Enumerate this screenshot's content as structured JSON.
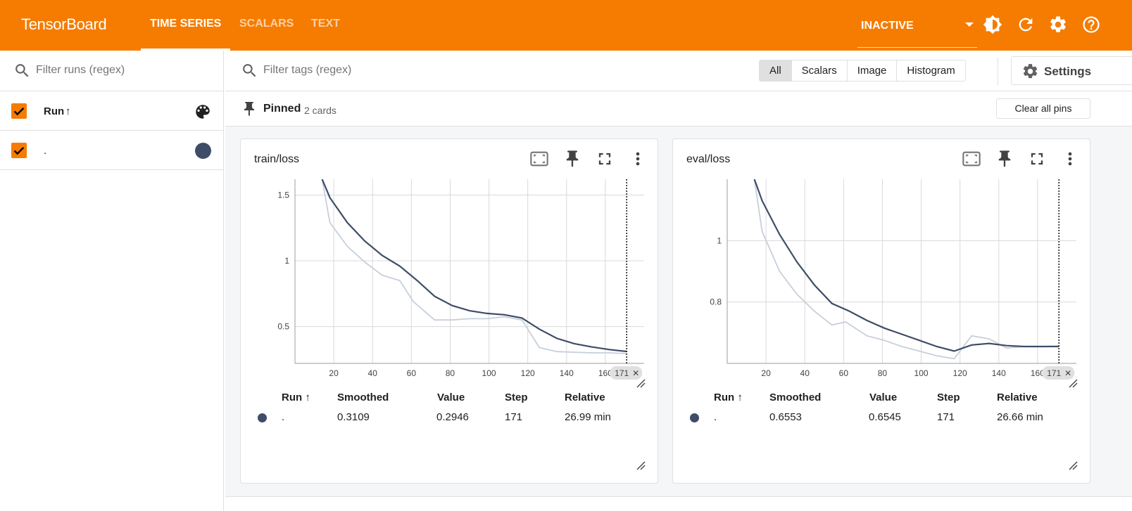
{
  "header": {
    "brand": "TensorBoard",
    "tabs": [
      {
        "label": "TIME SERIES",
        "active": true
      },
      {
        "label": "SCALARS",
        "active": false
      },
      {
        "label": "TEXT",
        "active": false
      }
    ],
    "reload_status": "INACTIVE",
    "icons": [
      "dark-mode-icon",
      "refresh-icon",
      "settings-icon",
      "help-icon"
    ],
    "color": "#f57c00"
  },
  "sidebar": {
    "filter_placeholder": "Filter runs (regex)",
    "header_label": "Run",
    "sort_arrow": "↑",
    "runs": [
      {
        "name": ".",
        "checked": true,
        "color": "#3e4d67"
      }
    ]
  },
  "main": {
    "filter_placeholder": "Filter tags (regex)",
    "type_filters": [
      "All",
      "Scalars",
      "Image",
      "Histogram"
    ],
    "selected_filter": "All",
    "settings_label": "Settings",
    "pinned": {
      "title": "Pinned",
      "count": "2 cards",
      "clear_label": "Clear all pins"
    }
  },
  "cards": [
    {
      "title": "train/loss",
      "table": {
        "headers": [
          "Run ↑",
          "Smoothed",
          "Value",
          "Step",
          "Relative"
        ],
        "row": {
          "run": ".",
          "smoothed": "0.3109",
          "value": "0.2946",
          "step": "171",
          "relative": "26.99 min"
        }
      }
    },
    {
      "title": "eval/loss",
      "table": {
        "headers": [
          "Run ↑",
          "Smoothed",
          "Value",
          "Step",
          "Relative"
        ],
        "row": {
          "run": ".",
          "smoothed": "0.6553",
          "value": "0.6545",
          "step": "171",
          "relative": "26.66 min"
        }
      }
    }
  ],
  "chart_data": [
    {
      "type": "line",
      "title": "train/loss",
      "xlim": [
        0,
        180
      ],
      "ylim": [
        0.22,
        1.62
      ],
      "x_ticks": [
        20,
        40,
        60,
        80,
        100,
        120,
        140,
        160
      ],
      "y_ticks": [
        0.5,
        1,
        1.5
      ],
      "cursor_step": 171,
      "cursor_label": "171",
      "series": [
        {
          "role": "raw",
          "color": "#c7cfdb",
          "x": [
            14,
            18,
            27,
            36,
            45,
            54,
            61,
            72,
            81,
            90,
            99,
            108,
            117,
            126,
            135,
            144,
            153,
            162,
            171
          ],
          "y": [
            1.62,
            1.29,
            1.11,
            0.99,
            0.89,
            0.85,
            0.69,
            0.55,
            0.55,
            0.56,
            0.56,
            0.575,
            0.55,
            0.34,
            0.31,
            0.305,
            0.3,
            0.3,
            0.295
          ]
        },
        {
          "role": "smoothed",
          "color": "#3e4d67",
          "x": [
            14,
            18,
            27,
            36,
            45,
            54,
            63,
            72,
            81,
            90,
            99,
            108,
            117,
            126,
            135,
            144,
            153,
            162,
            171
          ],
          "y": [
            1.62,
            1.48,
            1.29,
            1.15,
            1.04,
            0.96,
            0.85,
            0.73,
            0.66,
            0.62,
            0.6,
            0.59,
            0.565,
            0.48,
            0.41,
            0.37,
            0.345,
            0.325,
            0.311
          ]
        }
      ]
    },
    {
      "type": "line",
      "title": "eval/loss",
      "xlim": [
        0,
        180
      ],
      "ylim": [
        0.6,
        1.2
      ],
      "x_ticks": [
        20,
        40,
        60,
        80,
        100,
        120,
        140,
        160
      ],
      "y_ticks": [
        0.8,
        1
      ],
      "cursor_step": 171,
      "cursor_label": "171",
      "series": [
        {
          "role": "raw",
          "color": "#c7cfdb",
          "x": [
            14,
            18,
            27,
            36,
            45,
            54,
            61,
            72,
            81,
            90,
            99,
            108,
            117,
            126,
            135,
            144,
            153,
            162,
            171
          ],
          "y": [
            1.2,
            1.03,
            0.9,
            0.825,
            0.77,
            0.725,
            0.735,
            0.69,
            0.675,
            0.655,
            0.64,
            0.625,
            0.615,
            0.69,
            0.68,
            0.65,
            0.655,
            0.655,
            0.6545
          ]
        },
        {
          "role": "smoothed",
          "color": "#3e4d67",
          "x": [
            14,
            18,
            27,
            36,
            45,
            54,
            63,
            72,
            81,
            90,
            99,
            108,
            117,
            126,
            135,
            144,
            153,
            162,
            171
          ],
          "y": [
            1.2,
            1.13,
            1.02,
            0.93,
            0.855,
            0.795,
            0.77,
            0.74,
            0.715,
            0.695,
            0.675,
            0.655,
            0.64,
            0.66,
            0.665,
            0.658,
            0.655,
            0.655,
            0.6553
          ]
        }
      ]
    }
  ]
}
